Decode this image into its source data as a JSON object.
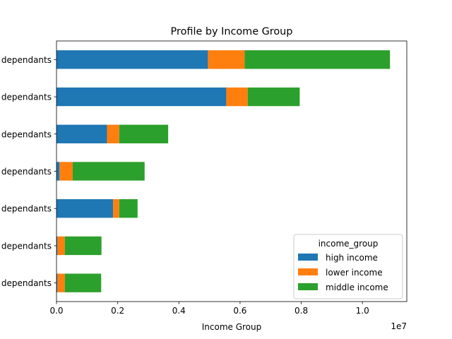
{
  "chart_data": {
    "type": "bar",
    "orientation": "horizontal",
    "stacked": true,
    "title": "Profile by Income Group",
    "xlabel": "Income Group",
    "ylabel": "",
    "x_multiplier_label": "1e7",
    "x_scale_factor": 10000000,
    "xlim": [
      0,
      11450000
    ],
    "x_ticks": [
      0,
      2000000,
      4000000,
      6000000,
      8000000,
      10000000
    ],
    "x_tick_labels": [
      "0.0",
      "0.2",
      "0.4",
      "0.6",
      "0.8",
      "1.0"
    ],
    "categories": [
      "dependants",
      "dependants",
      "dependants",
      "dependants",
      "dependants",
      "dependants",
      "dependants"
    ],
    "series": [
      {
        "name": "high income",
        "color": "#1f77b4",
        "values": [
          4950000,
          5550000,
          1650000,
          100000,
          1850000,
          30000,
          30000
        ]
      },
      {
        "name": "lower income",
        "color": "#ff7f0e",
        "values": [
          1200000,
          700000,
          400000,
          430000,
          200000,
          240000,
          240000
        ]
      },
      {
        "name": "middle income",
        "color": "#2ca02c",
        "values": [
          4750000,
          1700000,
          1600000,
          2350000,
          600000,
          1200000,
          1190000
        ]
      }
    ],
    "legend": {
      "title": "income_group",
      "position": "lower-right"
    },
    "grid": false
  }
}
